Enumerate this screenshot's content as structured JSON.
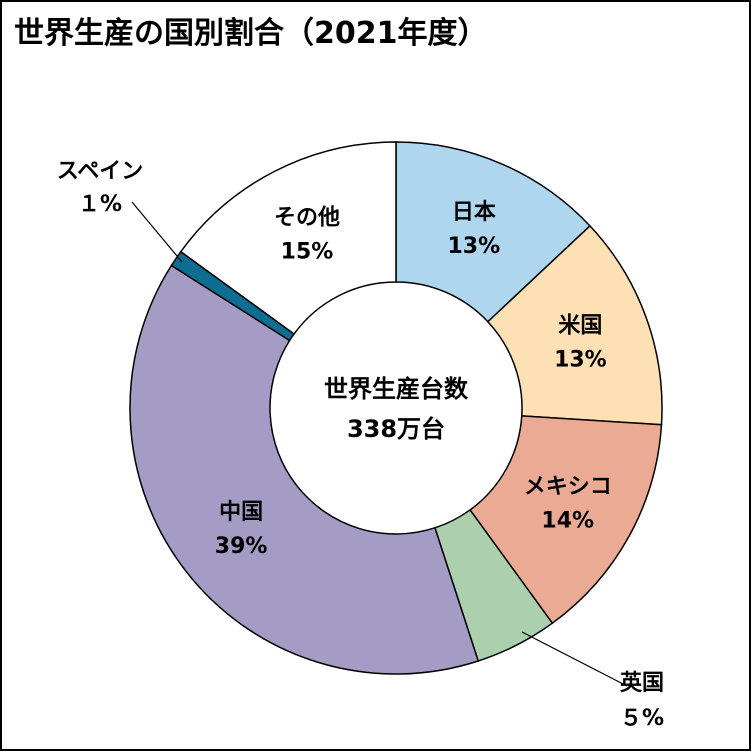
{
  "chart_data": {
    "type": "pie",
    "title": "世界生産の国別割合（2021年度）",
    "center_label": [
      "世界生産台数",
      "338万台"
    ],
    "slices": [
      {
        "label": "日本",
        "pct_text": "13%",
        "value": 13,
        "color": "#aed6ef"
      },
      {
        "label": "米国",
        "pct_text": "13%",
        "value": 13,
        "color": "#fde0b4"
      },
      {
        "label": "メキシコ",
        "pct_text": "14%",
        "value": 14,
        "color": "#eaaa94"
      },
      {
        "label": "英国",
        "pct_text": "５%",
        "value": 5,
        "color": "#acd0ae"
      },
      {
        "label": "中国",
        "pct_text": "39%",
        "value": 39,
        "color": "#a49cc4"
      },
      {
        "label": "スペイン",
        "pct_text": "１%",
        "value": 1,
        "color": "#0e6d90"
      },
      {
        "label": "その他",
        "pct_text": "15%",
        "value": 15,
        "color": "#ffffff"
      }
    ]
  }
}
